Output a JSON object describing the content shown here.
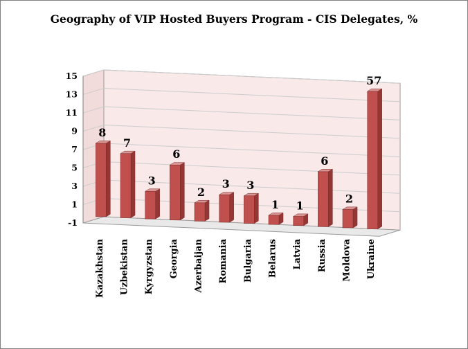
{
  "chart_data": {
    "type": "bar",
    "title": "Geography of VIP Hosted Buyers Program - CIS Delegates, %",
    "categories": [
      "Kazakhstan",
      "Uzbekistan",
      "Kyrgyzstan",
      "Georgia",
      "Azerbaijan",
      "Romania",
      "Bulgaria",
      "Belarus",
      "Latvia",
      "Russia",
      "Moldova",
      "Ukraine"
    ],
    "values": [
      8,
      7,
      3,
      6,
      2,
      3,
      3,
      1,
      1,
      6,
      2,
      57
    ],
    "data_labels": [
      "8",
      "7",
      "3",
      "6",
      "2",
      "3",
      "3",
      "1",
      "1",
      "6",
      "2",
      "57"
    ],
    "yticks": [
      -1,
      1,
      3,
      5,
      7,
      9,
      11,
      13,
      15
    ],
    "ylim": [
      -1,
      15
    ],
    "xlabel": "",
    "ylabel": "",
    "grid": true,
    "legend": "none",
    "style": "3d-column",
    "colors": {
      "bar": "#c0504d",
      "bar_dark": "#943634",
      "bar_light": "#d99694",
      "wall": "#f9e9e9",
      "grid": "#cccccc"
    }
  }
}
